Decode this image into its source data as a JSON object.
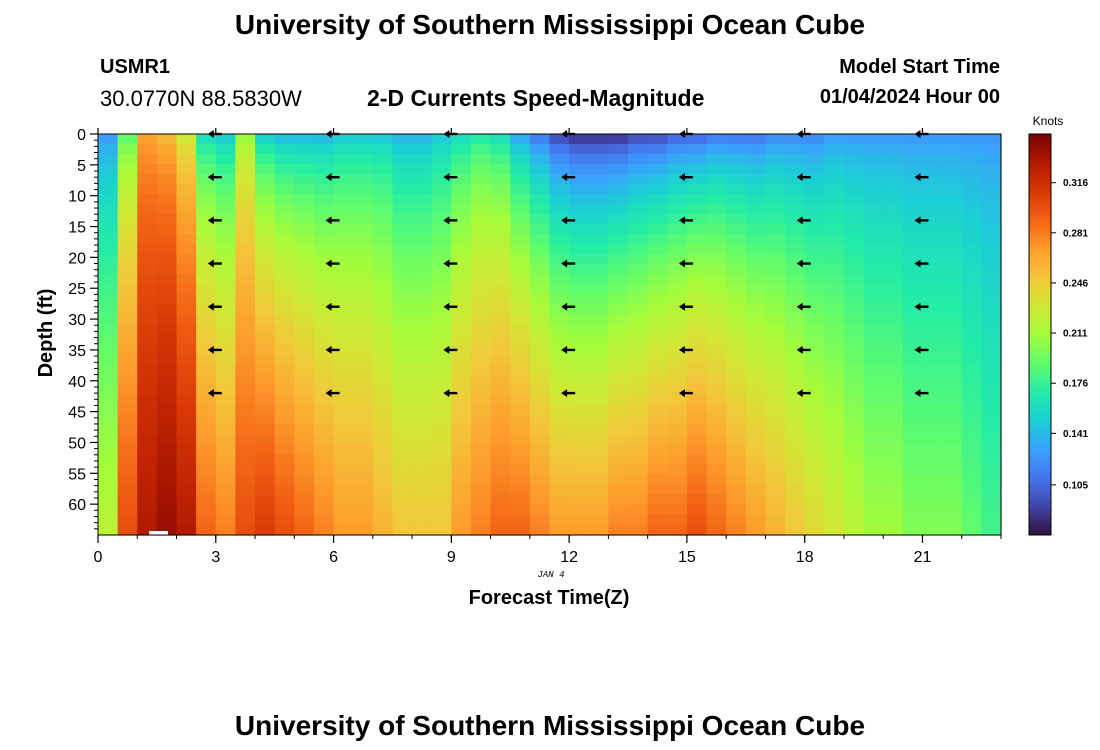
{
  "header": {
    "title": "University of Southern Mississippi Ocean Cube",
    "station_id": "USMR1",
    "coordinates": "30.0770N  88.5830W",
    "subtitle": "2-D Currents Speed-Magnitude",
    "model_start_label": "Model Start Time",
    "model_start_value": "01/04/2024 Hour 00"
  },
  "footer": {
    "title": "University of Southern Mississippi Ocean Cube"
  },
  "chart_data": {
    "type": "heatmap",
    "title": "2-D Currents Speed-Magnitude",
    "xlabel": "Forecast Time(Z)",
    "ylabel": "Depth (ft)",
    "date_label": "JAN 4",
    "x_range": [
      0,
      23
    ],
    "y_range": [
      0,
      65
    ],
    "x_ticks": [
      0,
      3,
      6,
      9,
      12,
      15,
      18,
      21
    ],
    "y_ticks": [
      0,
      5,
      10,
      15,
      20,
      25,
      30,
      35,
      40,
      45,
      50,
      55,
      60
    ],
    "colorbar": {
      "label": "Knots",
      "range": [
        0.07,
        0.35
      ],
      "ticks": [
        "0.316",
        "0.281",
        "0.246",
        "0.211",
        "0.176",
        "0.141",
        "0.105"
      ],
      "colors": [
        "#30123b",
        "#4145ab",
        "#4675ed",
        "#39a2fc",
        "#1bcfd4",
        "#24eca6",
        "#61fc6c",
        "#a4fc3b",
        "#d1e834",
        "#f3c63a",
        "#fe9b2d",
        "#f36315",
        "#d93806",
        "#b11901",
        "#7a0403"
      ]
    },
    "speed_by_hour_top": [
      0.12,
      0.18,
      0.26,
      0.25,
      0.22,
      0.15,
      0.14,
      0.2,
      0.14,
      0.13,
      0.13,
      0.13,
      0.14,
      0.14,
      0.14,
      0.13,
      0.13,
      0.14,
      0.15,
      0.16,
      0.15,
      0.12,
      0.1,
      0.08,
      0.07,
      0.07,
      0.07,
      0.08,
      0.08,
      0.09,
      0.09,
      0.1,
      0.1,
      0.1,
      0.11,
      0.11,
      0.11,
      0.12,
      0.12,
      0.12,
      0.12,
      0.12,
      0.12,
      0.12,
      0.12,
      0.12
    ],
    "speed_by_hour_bottom": [
      0.22,
      0.3,
      0.33,
      0.34,
      0.33,
      0.29,
      0.28,
      0.3,
      0.31,
      0.3,
      0.29,
      0.28,
      0.27,
      0.27,
      0.26,
      0.25,
      0.25,
      0.25,
      0.27,
      0.28,
      0.29,
      0.29,
      0.28,
      0.27,
      0.27,
      0.27,
      0.28,
      0.28,
      0.29,
      0.29,
      0.3,
      0.29,
      0.28,
      0.27,
      0.26,
      0.25,
      0.24,
      0.23,
      0.22,
      0.21,
      0.21,
      0.2,
      0.2,
      0.2,
      0.19,
      0.18
    ],
    "vectors": {
      "hours": [
        3,
        6,
        9,
        12,
        15,
        18,
        21
      ],
      "depths_ft": [
        0,
        7,
        14,
        21,
        28,
        35,
        42
      ],
      "direction": "westward"
    }
  }
}
